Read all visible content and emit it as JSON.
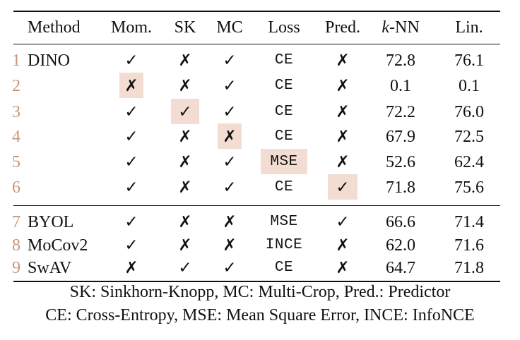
{
  "table": {
    "headers": {
      "method": "Method",
      "mom": "Mom.",
      "sk": "SK",
      "mc": "MC",
      "loss": "Loss",
      "pred": "Pred.",
      "knn_k": "k",
      "knn_rest": "-NN",
      "lin": "Lin."
    },
    "rows": [
      {
        "idx": "1",
        "method": "DINO",
        "mom": "✓",
        "sk": "✗",
        "mc": "✓",
        "loss": "CE",
        "pred": "✗",
        "knn": "72.8",
        "lin": "76.1",
        "highlight": null
      },
      {
        "idx": "2",
        "method": "",
        "mom": "✗",
        "sk": "✗",
        "mc": "✓",
        "loss": "CE",
        "pred": "✗",
        "knn": "0.1",
        "lin": "0.1",
        "highlight": "mom"
      },
      {
        "idx": "3",
        "method": "",
        "mom": "✓",
        "sk": "✓",
        "mc": "✓",
        "loss": "CE",
        "pred": "✗",
        "knn": "72.2",
        "lin": "76.0",
        "highlight": "sk"
      },
      {
        "idx": "4",
        "method": "",
        "mom": "✓",
        "sk": "✗",
        "mc": "✗",
        "loss": "CE",
        "pred": "✗",
        "knn": "67.9",
        "lin": "72.5",
        "highlight": "mc"
      },
      {
        "idx": "5",
        "method": "",
        "mom": "✓",
        "sk": "✗",
        "mc": "✓",
        "loss": "MSE",
        "pred": "✗",
        "knn": "52.6",
        "lin": "62.4",
        "highlight": "loss"
      },
      {
        "idx": "6",
        "method": "",
        "mom": "✓",
        "sk": "✗",
        "mc": "✓",
        "loss": "CE",
        "pred": "✓",
        "knn": "71.8",
        "lin": "75.6",
        "highlight": "pred"
      },
      {
        "idx": "7",
        "method": "BYOL",
        "mom": "✓",
        "sk": "✗",
        "mc": "✗",
        "loss": "MSE",
        "pred": "✓",
        "knn": "66.6",
        "lin": "71.4",
        "highlight": null
      },
      {
        "idx": "8",
        "method": "MoCov2",
        "mom": "✓",
        "sk": "✗",
        "mc": "✗",
        "loss": "INCE",
        "pred": "✗",
        "knn": "62.0",
        "lin": "71.6",
        "highlight": null
      },
      {
        "idx": "9",
        "method": "SwAV",
        "mom": "✗",
        "sk": "✓",
        "mc": "✓",
        "loss": "CE",
        "pred": "✗",
        "knn": "64.7",
        "lin": "71.8",
        "highlight": null
      }
    ]
  },
  "notes": [
    "SK: Sinkhorn-Knopp, MC: Multi-Crop, Pred.: Predictor",
    "CE: Cross-Entropy, MSE: Mean Square Error, INCE: InfoNCE"
  ],
  "colors": {
    "highlight": "#f3ddd2",
    "index": "#c9957b"
  }
}
